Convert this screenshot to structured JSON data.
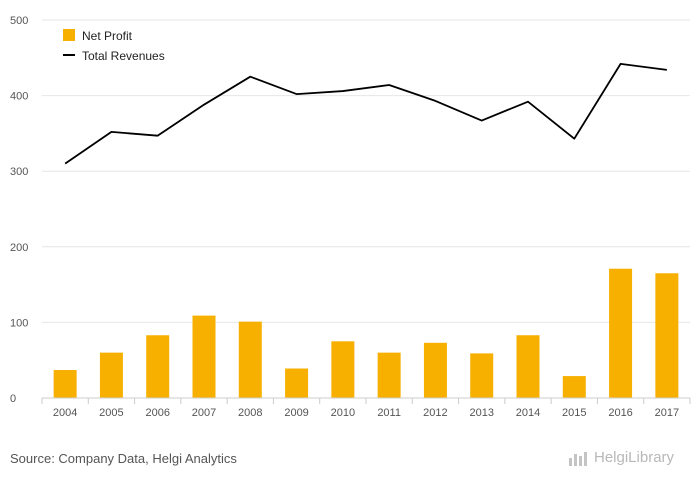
{
  "chart_data": {
    "type": "bar",
    "categories": [
      "2004",
      "2005",
      "2006",
      "2007",
      "2008",
      "2009",
      "2010",
      "2011",
      "2012",
      "2013",
      "2014",
      "2015",
      "2016",
      "2017"
    ],
    "series": [
      {
        "name": "Net Profit",
        "type": "bar",
        "color": "#f7b000",
        "values": [
          37,
          60,
          83,
          109,
          101,
          39,
          75,
          60,
          73,
          59,
          83,
          29,
          171,
          165
        ]
      },
      {
        "name": "Total Revenues",
        "type": "line",
        "color": "#000000",
        "values": [
          310,
          352,
          347,
          388,
          425,
          402,
          406,
          414,
          393,
          367,
          392,
          343,
          442,
          434
        ]
      }
    ],
    "y_ticks": [
      "0",
      "100",
      "200",
      "300",
      "400",
      "500"
    ],
    "ylim": [
      0,
      500
    ],
    "grid": true,
    "legend_position": "top-left"
  },
  "footer": {
    "source": "Source: Company Data, Helgi Analytics",
    "brand": "HelgiLibrary"
  },
  "icons": {
    "brand_icon": "bar-chart-icon"
  }
}
